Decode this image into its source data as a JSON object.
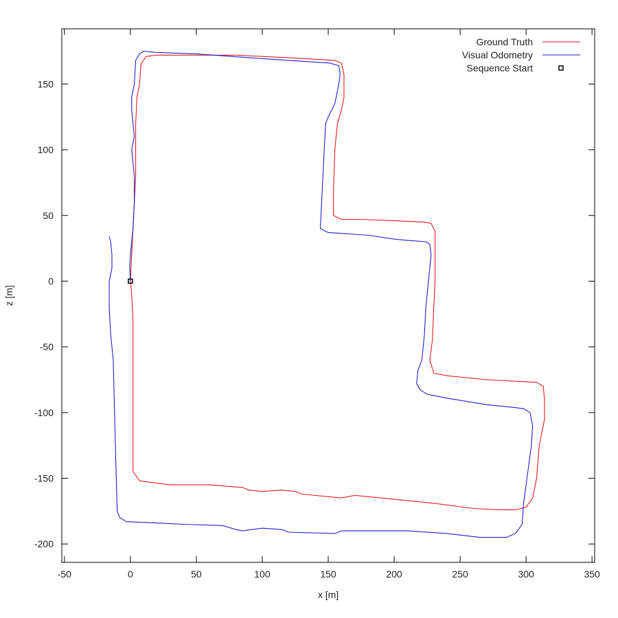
{
  "chart_data": {
    "type": "line",
    "title": "",
    "xlabel": "x [m]",
    "ylabel": "z [m]",
    "xlim": [
      -52,
      352
    ],
    "ylim": [
      -214,
      192
    ],
    "x_ticks": [
      -50,
      0,
      50,
      100,
      150,
      200,
      250,
      300,
      350
    ],
    "y_ticks": [
      150,
      100,
      50,
      0,
      -50,
      -100,
      -150,
      -200
    ],
    "grid": false,
    "legend_position": "top-right",
    "series": [
      {
        "name": "Ground Truth",
        "color": "#e41a1c",
        "points": [
          [
            0,
            0
          ],
          [
            1,
            -10
          ],
          [
            2,
            -30
          ],
          [
            2,
            -60
          ],
          [
            2,
            -100
          ],
          [
            2,
            -140
          ],
          [
            2,
            -145
          ],
          [
            7,
            -152
          ],
          [
            30,
            -155
          ],
          [
            60,
            -155
          ],
          [
            85,
            -157
          ],
          [
            90,
            -159
          ],
          [
            100,
            -160
          ],
          [
            115,
            -159
          ],
          [
            125,
            -160
          ],
          [
            130,
            -162
          ],
          [
            160,
            -165
          ],
          [
            170,
            -163
          ],
          [
            200,
            -166
          ],
          [
            230,
            -169
          ],
          [
            260,
            -173
          ],
          [
            280,
            -174
          ],
          [
            292,
            -174
          ],
          [
            300,
            -172
          ],
          [
            305,
            -165
          ],
          [
            308,
            -150
          ],
          [
            310,
            -125
          ],
          [
            314,
            -105
          ],
          [
            314,
            -90
          ],
          [
            313,
            -80
          ],
          [
            308,
            -77
          ],
          [
            270,
            -75
          ],
          [
            240,
            -72
          ],
          [
            230,
            -70
          ],
          [
            227,
            -60
          ],
          [
            229,
            -45
          ],
          [
            230,
            -20
          ],
          [
            231,
            0
          ],
          [
            231,
            15
          ],
          [
            231,
            38
          ],
          [
            228,
            44
          ],
          [
            222,
            45
          ],
          [
            200,
            46
          ],
          [
            175,
            47
          ],
          [
            160,
            47
          ],
          [
            154,
            50
          ],
          [
            154,
            70
          ],
          [
            155,
            100
          ],
          [
            157,
            120
          ],
          [
            160,
            130
          ],
          [
            162,
            140
          ],
          [
            162,
            157
          ],
          [
            160,
            166
          ],
          [
            155,
            168
          ],
          [
            120,
            170
          ],
          [
            80,
            172
          ],
          [
            50,
            172
          ],
          [
            20,
            172
          ],
          [
            12,
            171
          ],
          [
            8,
            165
          ],
          [
            7,
            150
          ],
          [
            5,
            140
          ],
          [
            4,
            120
          ],
          [
            4,
            100
          ],
          [
            4,
            80
          ],
          [
            3,
            60
          ],
          [
            2,
            40
          ],
          [
            1,
            20
          ],
          [
            0,
            0
          ]
        ]
      },
      {
        "name": "Visual Odometry",
        "color": "#1f1fcc",
        "points": [
          [
            -16,
            34
          ],
          [
            -15,
            30
          ],
          [
            -14,
            20
          ],
          [
            -14,
            10
          ],
          [
            -16,
            0
          ],
          [
            -16,
            -20
          ],
          [
            -15,
            -40
          ],
          [
            -13,
            -60
          ],
          [
            -12,
            -100
          ],
          [
            -11,
            -140
          ],
          [
            -10,
            -175
          ],
          [
            -8,
            -180
          ],
          [
            -3,
            -183
          ],
          [
            20,
            -184
          ],
          [
            40,
            -185
          ],
          [
            70,
            -186
          ],
          [
            80,
            -189
          ],
          [
            85,
            -190
          ],
          [
            100,
            -188
          ],
          [
            115,
            -189
          ],
          [
            120,
            -191
          ],
          [
            155,
            -192
          ],
          [
            160,
            -190
          ],
          [
            210,
            -190
          ],
          [
            240,
            -192
          ],
          [
            265,
            -195
          ],
          [
            285,
            -195
          ],
          [
            292,
            -192
          ],
          [
            297,
            -185
          ],
          [
            298,
            -170
          ],
          [
            300,
            -155
          ],
          [
            302,
            -140
          ],
          [
            304,
            -125
          ],
          [
            305,
            -110
          ],
          [
            303,
            -100
          ],
          [
            298,
            -97
          ],
          [
            290,
            -96
          ],
          [
            270,
            -94
          ],
          [
            240,
            -89
          ],
          [
            225,
            -86
          ],
          [
            220,
            -83
          ],
          [
            217,
            -78
          ],
          [
            218,
            -68
          ],
          [
            221,
            -60
          ],
          [
            223,
            -40
          ],
          [
            224,
            -20
          ],
          [
            226,
            0
          ],
          [
            227,
            10
          ],
          [
            228,
            20
          ],
          [
            227,
            28
          ],
          [
            224,
            30
          ],
          [
            210,
            31
          ],
          [
            200,
            32
          ],
          [
            180,
            35
          ],
          [
            150,
            37
          ],
          [
            144,
            40
          ],
          [
            145,
            60
          ],
          [
            146,
            80
          ],
          [
            147,
            100
          ],
          [
            148,
            120
          ],
          [
            150,
            125
          ],
          [
            155,
            135
          ],
          [
            158,
            150
          ],
          [
            159,
            158
          ],
          [
            158,
            164
          ],
          [
            151,
            166
          ],
          [
            120,
            168
          ],
          [
            90,
            170
          ],
          [
            50,
            173
          ],
          [
            20,
            174
          ],
          [
            10,
            175
          ],
          [
            7,
            173
          ],
          [
            4,
            168
          ],
          [
            3,
            150
          ],
          [
            1,
            140
          ],
          [
            1,
            130
          ],
          [
            2,
            120
          ],
          [
            3,
            110
          ],
          [
            1,
            100
          ],
          [
            3,
            80
          ],
          [
            3,
            60
          ],
          [
            2,
            40
          ],
          [
            0,
            20
          ],
          [
            -0.5,
            10
          ],
          [
            0,
            0
          ]
        ]
      },
      {
        "name": "Sequence Start",
        "color": "#000000",
        "marker": "square",
        "points": [
          [
            0,
            0
          ]
        ]
      }
    ]
  }
}
